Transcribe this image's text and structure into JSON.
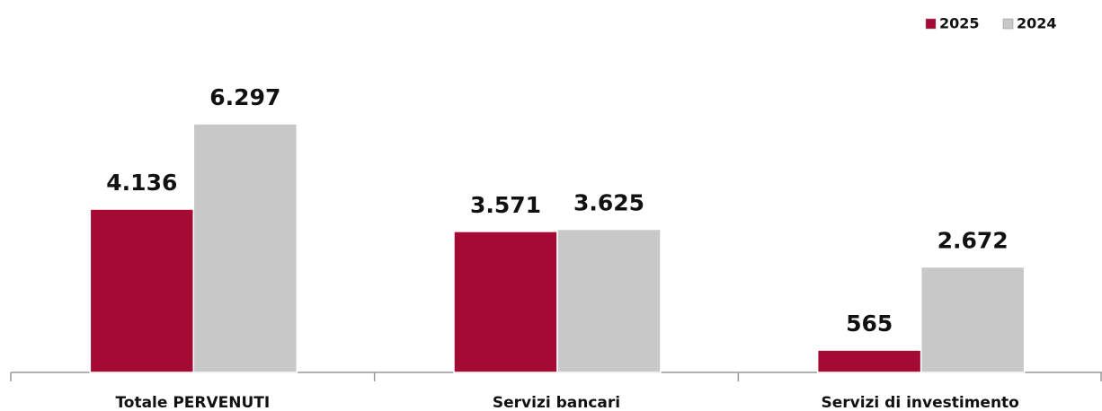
{
  "chart_data": {
    "type": "bar",
    "categories": [
      "Totale PERVENUTI",
      "Servizi bancari",
      "Servizi di investimento"
    ],
    "series": [
      {
        "name": "2025",
        "color": "#a50a35",
        "values": [
          4136,
          3571,
          565
        ],
        "value_labels": [
          "4.136",
          "3.571",
          "565"
        ]
      },
      {
        "name": "2024",
        "color": "#c8c8c8",
        "values": [
          6297,
          3625,
          2672
        ],
        "value_labels": [
          "6.297",
          "3.625",
          "2.672"
        ]
      }
    ],
    "legend": "top-right"
  }
}
